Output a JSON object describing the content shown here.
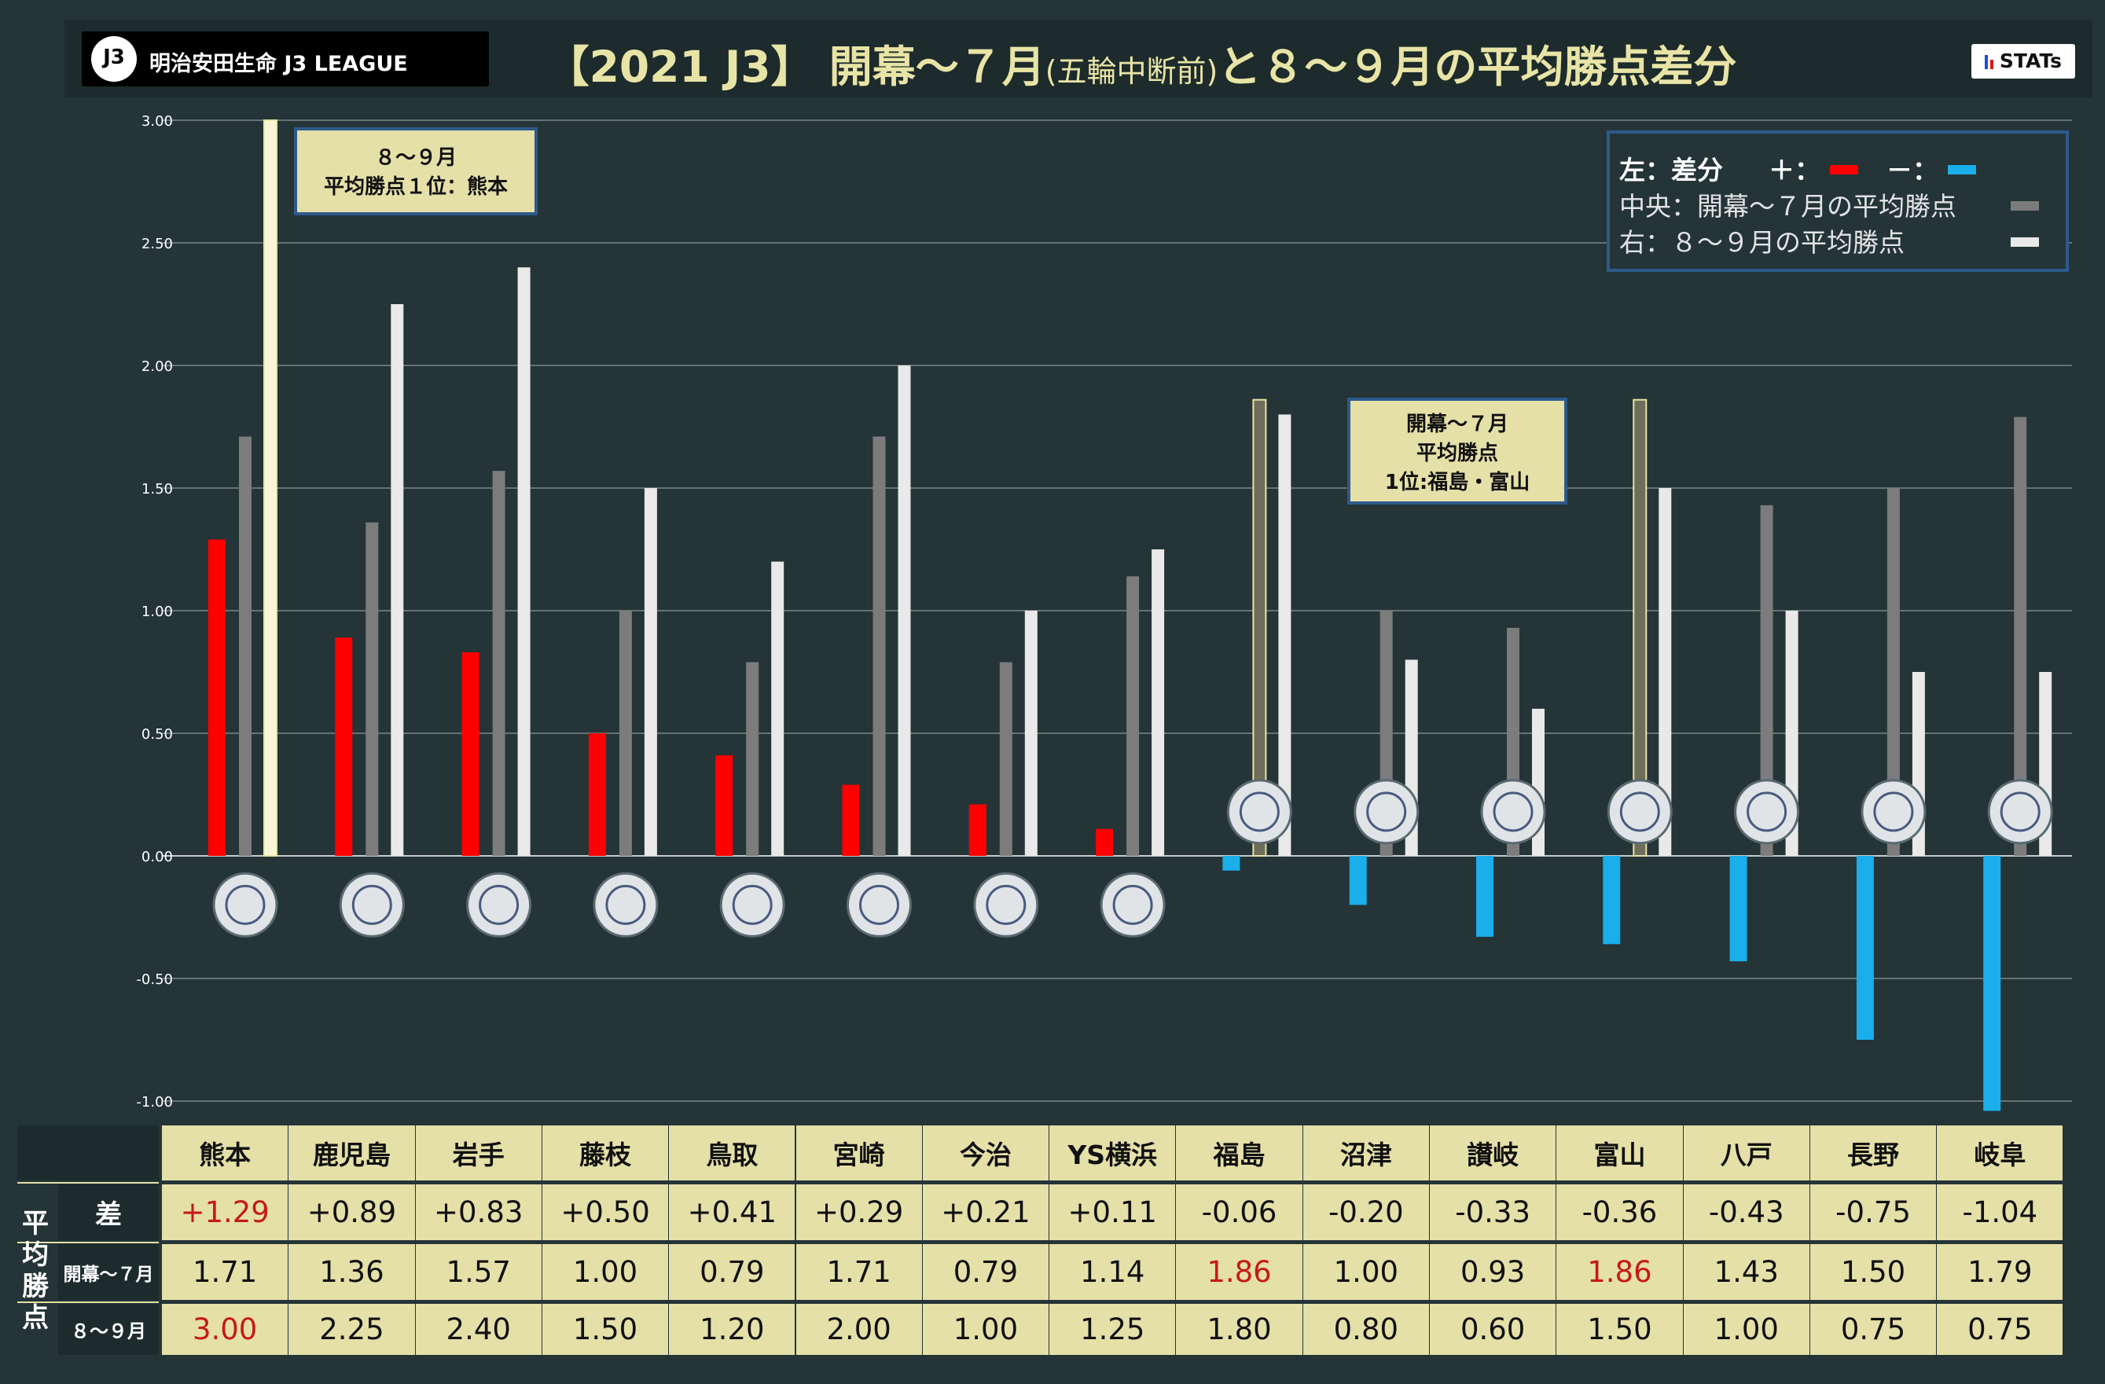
{
  "header": {
    "logo_text": "明治安田生命 J3 LEAGUE",
    "logo_mark": "J3",
    "title_main": "【2021 J3】 開幕～７月",
    "title_paren": "(五輪中断前)",
    "title_tail": "と８～９月の平均勝点差分",
    "stats_label": "STATs"
  },
  "callouts": {
    "top_aug_sep": [
      "８～９月",
      "平均勝点１位：熊本"
    ],
    "top_open_jul": [
      "開幕～７月",
      "平均勝点",
      "1位:福島・富山"
    ]
  },
  "legend": {
    "row1_label": "左：差分",
    "row1_plus": "＋：",
    "row1_minus": "－：",
    "row2": "中央：開幕～７月の平均勝点",
    "row3": "右：８～９月の平均勝点"
  },
  "table": {
    "group_label": [
      "平",
      "均",
      "勝",
      "点"
    ],
    "row_labels": {
      "diff": "差",
      "open_jul": "開幕～７月",
      "aug_sep": "８～９月"
    },
    "diff_text": [
      "+1.29",
      "+0.89",
      "+0.83",
      "+0.50",
      "+0.41",
      "+0.29",
      "+0.21",
      "+0.11",
      "-0.06",
      "-0.20",
      "-0.33",
      "-0.36",
      "-0.43",
      "-0.75",
      "-1.04"
    ],
    "open_jul_text": [
      "1.71",
      "1.36",
      "1.57",
      "1.00",
      "0.79",
      "1.71",
      "0.79",
      "1.14",
      "1.86",
      "1.00",
      "0.93",
      "1.86",
      "1.43",
      "1.50",
      "1.79"
    ],
    "aug_sep_text": [
      "3.00",
      "2.25",
      "2.40",
      "1.50",
      "1.20",
      "2.00",
      "1.00",
      "1.25",
      "1.80",
      "0.80",
      "0.60",
      "1.50",
      "1.00",
      "0.75",
      "0.75"
    ]
  },
  "colors": {
    "positive": "#ff0000",
    "negative": "#1aaeea",
    "open_jul": "#7c7c7c",
    "aug_sep": "#e9e9e9",
    "highlight_border": "#e8e4a6",
    "table_bg": "#e5e0a8",
    "table_red": "#c41a1a"
  },
  "chart_data": {
    "type": "bar",
    "categories": [
      "熊本",
      "鹿児島",
      "岩手",
      "藤枝",
      "鳥取",
      "宮崎",
      "今治",
      "YS横浜",
      "福島",
      "沼津",
      "讃岐",
      "富山",
      "八戸",
      "長野",
      "岐阜"
    ],
    "series": [
      {
        "name": "差分",
        "values": [
          1.29,
          0.89,
          0.83,
          0.5,
          0.41,
          0.29,
          0.21,
          0.11,
          -0.06,
          -0.2,
          -0.33,
          -0.36,
          -0.43,
          -0.75,
          -1.04
        ]
      },
      {
        "name": "開幕～７月の平均勝点",
        "values": [
          1.71,
          1.36,
          1.57,
          1.0,
          0.79,
          1.71,
          0.79,
          1.14,
          1.86,
          1.0,
          0.93,
          1.86,
          1.43,
          1.5,
          1.79
        ]
      },
      {
        "name": "８～９月の平均勝点",
        "values": [
          3.0,
          2.25,
          2.4,
          1.5,
          1.2,
          2.0,
          1.0,
          1.25,
          1.8,
          0.8,
          0.6,
          1.5,
          1.0,
          0.75,
          0.75
        ]
      }
    ],
    "highlighted": {
      "開幕～７月の平均勝点": [
        "福島",
        "富山"
      ],
      "８～９月の平均勝点": [
        "熊本"
      ]
    },
    "yticks": [
      "3.00",
      "2.50",
      "2.00",
      "1.50",
      "1.00",
      "0.50",
      "0.00",
      "-0.50",
      "-1.00"
    ],
    "ylim": [
      -1.0,
      3.0
    ],
    "grid": true,
    "legend_position": "top-right"
  }
}
